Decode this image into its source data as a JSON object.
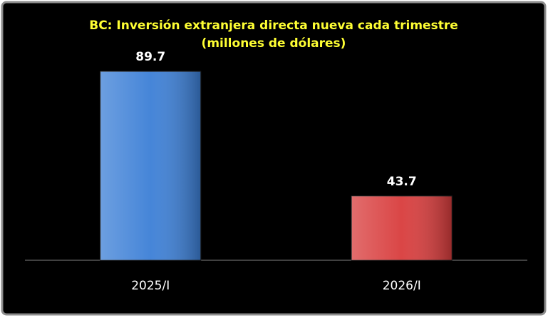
{
  "chart_data": {
    "type": "bar",
    "title": "BC: Inversión extranjera directa nueva cada trimestre",
    "subtitle": "(millones de dólares)",
    "categories": [
      "2025/I",
      "2026/I"
    ],
    "values": [
      89.7,
      43.7
    ],
    "colors": [
      "#3c7fd6",
      "#d83c3c"
    ],
    "ylim": [
      20,
      100
    ]
  }
}
